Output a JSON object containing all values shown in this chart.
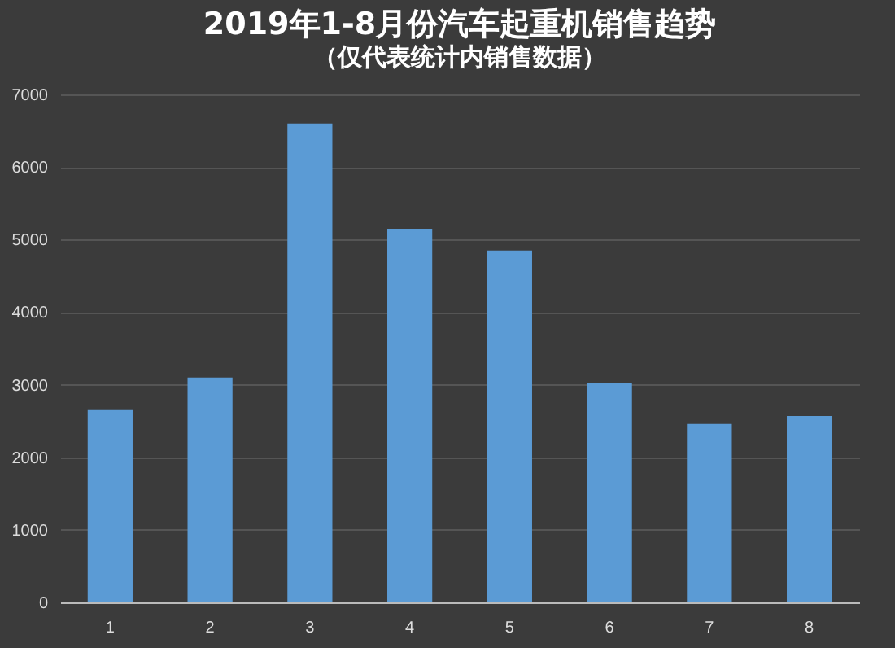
{
  "chart_data": {
    "type": "bar",
    "title": "2019年1-8月份汽车起重机销售趋势",
    "subtitle": "（仅代表统计内销售数据）",
    "categories": [
      "1",
      "2",
      "3",
      "4",
      "5",
      "6",
      "7",
      "8"
    ],
    "values": [
      2650,
      3100,
      6600,
      5150,
      4850,
      3030,
      2460,
      2570
    ],
    "color": "#5b9bd5",
    "ylim": [
      0,
      7000
    ],
    "yticks": [
      0,
      1000,
      2000,
      3000,
      4000,
      5000,
      6000,
      7000
    ],
    "grid": "y"
  }
}
